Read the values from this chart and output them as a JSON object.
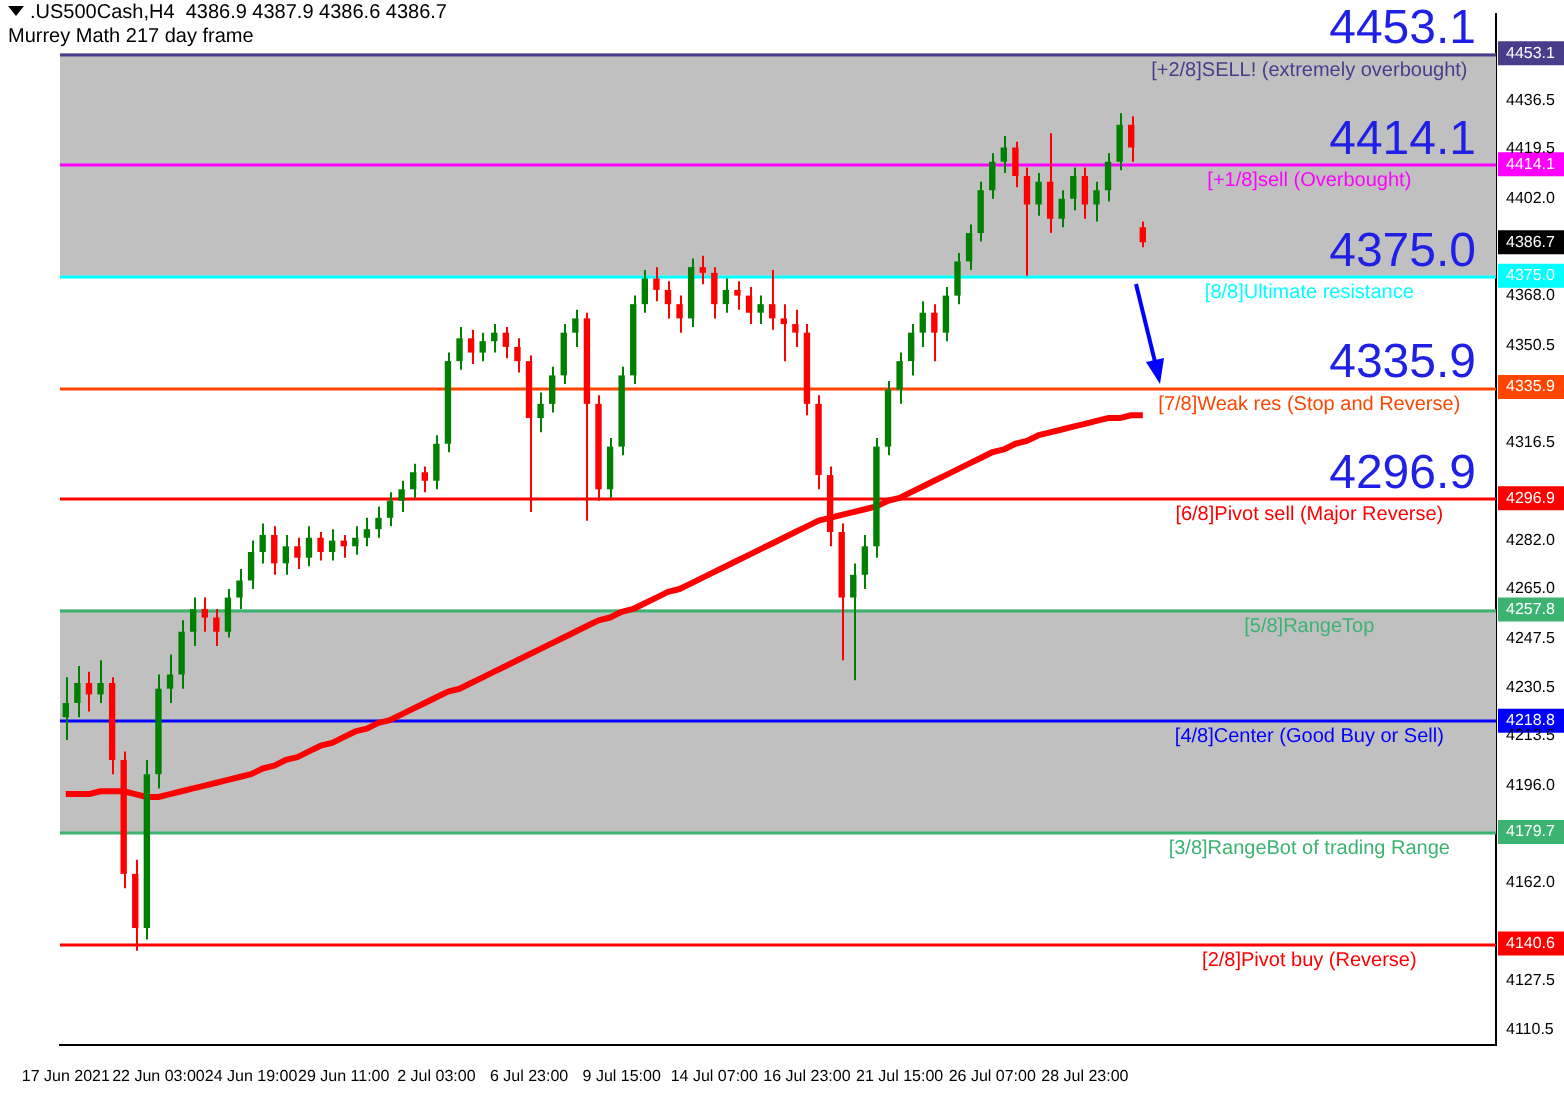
{
  "chart_data": {
    "type": "candlestick",
    "title": ".US500Cash,H4  4386.9 4387.9 4386.6 4386.7",
    "subtitle": "Murrey Math 217 day frame",
    "categories": [
      "17 Jun 2021",
      null,
      null,
      null,
      null,
      null,
      null,
      null,
      "22 Jun 03:00",
      null,
      null,
      null,
      null,
      null,
      null,
      null,
      "24 Jun 19:00",
      null,
      null,
      null,
      null,
      null,
      null,
      null,
      "29 Jun 11:00",
      null,
      null,
      null,
      null,
      null,
      null,
      null,
      "2 Jul 03:00",
      null,
      null,
      null,
      null,
      null,
      null,
      null,
      "6 Jul 23:00",
      null,
      null,
      null,
      null,
      null,
      null,
      null,
      "9 Jul 15:00",
      null,
      null,
      null,
      null,
      null,
      null,
      null,
      "14 Jul 07:00",
      null,
      null,
      null,
      null,
      null,
      null,
      null,
      "16 Jul 23:00",
      null,
      null,
      null,
      null,
      null,
      null,
      null,
      "21 Jul 15:00",
      null,
      null,
      null,
      null,
      null,
      null,
      null,
      "26 Jul 07:00",
      null,
      null,
      null,
      null,
      null,
      null,
      null,
      "28 Jul 23:00",
      null,
      null,
      null,
      null,
      null,
      null,
      null,
      null,
      null,
      null,
      null,
      null,
      null,
      null,
      null,
      null,
      null,
      null,
      null,
      null,
      null,
      null,
      null,
      null,
      null,
      null,
      null,
      null,
      null,
      null,
      null,
      null,
      null,
      null,
      null
    ],
    "ohlc": [
      [
        4220,
        4234,
        4212,
        4225
      ],
      [
        4225,
        4238,
        4220,
        4232
      ],
      [
        4232,
        4236,
        4222,
        4228
      ],
      [
        4228,
        4240,
        4225,
        4232
      ],
      [
        4232,
        4234,
        4200,
        4205
      ],
      [
        4205,
        4208,
        4160,
        4165
      ],
      [
        4165,
        4170,
        4138,
        4146
      ],
      [
        4146,
        4205,
        4142,
        4200
      ],
      [
        4200,
        4235,
        4195,
        4230
      ],
      [
        4230,
        4242,
        4225,
        4235
      ],
      [
        4235,
        4254,
        4230,
        4250
      ],
      [
        4250,
        4262,
        4245,
        4258
      ],
      [
        4258,
        4262,
        4250,
        4255
      ],
      [
        4255,
        4258,
        4245,
        4250
      ],
      [
        4250,
        4265,
        4248,
        4262
      ],
      [
        4262,
        4272,
        4258,
        4268
      ],
      [
        4268,
        4282,
        4265,
        4278
      ],
      [
        4278,
        4288,
        4274,
        4284
      ],
      [
        4284,
        4287,
        4270,
        4274
      ],
      [
        4274,
        4284,
        4270,
        4280
      ],
      [
        4280,
        4283,
        4272,
        4276
      ],
      [
        4276,
        4287,
        4273,
        4283
      ],
      [
        4283,
        4285,
        4275,
        4278
      ],
      [
        4278,
        4286,
        4275,
        4282
      ],
      [
        4282,
        4284,
        4276,
        4280
      ],
      [
        4280,
        4287,
        4277,
        4283
      ],
      [
        4283,
        4290,
        4280,
        4286
      ],
      [
        4286,
        4294,
        4283,
        4290
      ],
      [
        4290,
        4299,
        4287,
        4296
      ],
      [
        4296,
        4303,
        4292,
        4300
      ],
      [
        4300,
        4309,
        4297,
        4306
      ],
      [
        4306,
        4308,
        4299,
        4303
      ],
      [
        4303,
        4319,
        4300,
        4316
      ],
      [
        4316,
        4348,
        4313,
        4345
      ],
      [
        4345,
        4357,
        4342,
        4353
      ],
      [
        4353,
        4356,
        4344,
        4348
      ],
      [
        4348,
        4355,
        4345,
        4352
      ],
      [
        4352,
        4358,
        4348,
        4355
      ],
      [
        4355,
        4357,
        4346,
        4350
      ],
      [
        4350,
        4353,
        4341,
        4345
      ],
      [
        4345,
        4347,
        4292,
        4325
      ],
      [
        4325,
        4334,
        4320,
        4330
      ],
      [
        4330,
        4343,
        4327,
        4340
      ],
      [
        4340,
        4358,
        4337,
        4355
      ],
      [
        4355,
        4363,
        4350,
        4360
      ],
      [
        4360,
        4362,
        4289,
        4330
      ],
      [
        4330,
        4333,
        4296,
        4300
      ],
      [
        4300,
        4318,
        4297,
        4315
      ],
      [
        4315,
        4343,
        4312,
        4340
      ],
      [
        4340,
        4368,
        4337,
        4365
      ],
      [
        4365,
        4377,
        4362,
        4374
      ],
      [
        4374,
        4378,
        4366,
        4370
      ],
      [
        4370,
        4373,
        4360,
        4365
      ],
      [
        4365,
        4368,
        4355,
        4360
      ],
      [
        4360,
        4381,
        4357,
        4378
      ],
      [
        4378,
        4382,
        4372,
        4376
      ],
      [
        4376,
        4378,
        4360,
        4365
      ],
      [
        4365,
        4374,
        4362,
        4370
      ],
      [
        4370,
        4373,
        4363,
        4368
      ],
      [
        4368,
        4371,
        4358,
        4362
      ],
      [
        4362,
        4368,
        4358,
        4365
      ],
      [
        4365,
        4377,
        4356,
        4360
      ],
      [
        4360,
        4365,
        4345,
        4358
      ],
      [
        4358,
        4363,
        4350,
        4355
      ],
      [
        4355,
        4358,
        4326,
        4330
      ],
      [
        4330,
        4333,
        4300,
        4305
      ],
      [
        4305,
        4308,
        4280,
        4285
      ],
      [
        4285,
        4288,
        4240,
        4262
      ],
      [
        4262,
        4274,
        4233,
        4270
      ],
      [
        4270,
        4284,
        4265,
        4280
      ],
      [
        4280,
        4318,
        4276,
        4315
      ],
      [
        4315,
        4338,
        4312,
        4335
      ],
      [
        4335,
        4348,
        4330,
        4345
      ],
      [
        4345,
        4358,
        4340,
        4355
      ],
      [
        4355,
        4366,
        4350,
        4362
      ],
      [
        4362,
        4365,
        4345,
        4355
      ],
      [
        4355,
        4371,
        4352,
        4368
      ],
      [
        4368,
        4383,
        4365,
        4380
      ],
      [
        4380,
        4393,
        4377,
        4390
      ],
      [
        4390,
        4408,
        4387,
        4405
      ],
      [
        4405,
        4418,
        4402,
        4415
      ],
      [
        4415,
        4424,
        4411,
        4420
      ],
      [
        4420,
        4422,
        4406,
        4410
      ],
      [
        4410,
        4413,
        4375,
        4400
      ],
      [
        4400,
        4411,
        4396,
        4408
      ],
      [
        4408,
        4425,
        4390,
        4395
      ],
      [
        4395,
        4405,
        4392,
        4402
      ],
      [
        4402,
        4413,
        4398,
        4410
      ],
      [
        4410,
        4413,
        4395,
        4400
      ],
      [
        4400,
        4408,
        4394,
        4405
      ],
      [
        4405,
        4418,
        4401,
        4415
      ],
      [
        4415,
        4432,
        4412,
        4428
      ],
      [
        4428,
        4431,
        4415,
        4420
      ],
      [
        4392,
        4394,
        4385,
        4386.7
      ],
      null,
      null,
      null,
      null,
      null,
      null,
      null,
      null,
      null,
      null,
      null,
      null,
      null,
      null,
      null,
      null,
      null,
      null,
      null,
      null,
      null,
      null,
      null,
      null,
      null,
      null,
      null,
      null,
      null,
      null
    ],
    "series": [
      {
        "type": "line",
        "color": "#ff0000",
        "values": [
          4193,
          4193,
          4193,
          4194,
          4194,
          4194,
          4193,
          4192,
          4192,
          4193,
          4194,
          4195,
          4196,
          4197,
          4198,
          4199,
          4200,
          4202,
          4203,
          4205,
          4206,
          4208,
          4210,
          4211,
          4213,
          4215,
          4216,
          4218,
          4219,
          4221,
          4223,
          4225,
          4227,
          4229,
          4230,
          4232,
          4234,
          4236,
          4238,
          4240,
          4242,
          4244,
          4246,
          4248,
          4250,
          4252,
          4254,
          4255,
          4257,
          4258,
          4260,
          4262,
          4264,
          4265,
          4267,
          4269,
          4271,
          4273,
          4275,
          4277,
          4279,
          4281,
          4283,
          4285,
          4287,
          4289,
          4290,
          4291,
          4292,
          4293,
          4294,
          4296,
          4297,
          4299,
          4301,
          4303,
          4305,
          4307,
          4309,
          4311,
          4313,
          4314,
          4316,
          4317,
          4319,
          4320,
          4321,
          4322,
          4323,
          4324,
          4325,
          4325,
          4326,
          4326,
          null,
          null,
          null,
          null,
          null,
          null,
          null,
          null,
          null,
          null,
          null,
          null,
          null,
          null,
          null,
          null,
          null,
          null,
          null,
          null,
          null,
          null,
          null,
          null,
          null,
          null,
          null,
          null,
          null,
          null
        ]
      }
    ],
    "ylim": [
      4105,
      4467
    ],
    "yticks": [
      {
        "value": 4110.5,
        "label": "4110.5"
      },
      {
        "value": 4127.5,
        "label": "4127.5"
      },
      {
        "value": 4162,
        "label": "4162.0"
      },
      {
        "value": 4196,
        "label": "4196.0"
      },
      {
        "value": 4213.5,
        "label": "4213.5"
      },
      {
        "value": 4230.5,
        "label": "4230.5"
      },
      {
        "value": 4247.5,
        "label": "4247.5"
      },
      {
        "value": 4265,
        "label": "4265.0"
      },
      {
        "value": 4282,
        "label": "4282.0"
      },
      {
        "value": 4316.5,
        "label": "4316.5"
      },
      {
        "value": 4350.5,
        "label": "4350.5"
      },
      {
        "value": 4368,
        "label": "4368.0"
      },
      {
        "value": 4402,
        "label": "4402.0"
      },
      {
        "value": 4419.5,
        "label": "4419.5"
      },
      {
        "value": 4436.5,
        "label": "4436.5"
      },
      {
        "value": 4453.1,
        "label": "4453.1"
      },
      {
        "value": 4414.1,
        "label": "4414.1"
      },
      {
        "value": 4386.7,
        "label": "4386.7"
      },
      {
        "value": 4375,
        "label": "4375.0"
      },
      {
        "value": 4335.9,
        "label": "4335.9"
      },
      {
        "value": 4296.9,
        "label": "4296.9"
      },
      {
        "value": 4257.8,
        "label": "4257.8"
      },
      {
        "value": 4218.8,
        "label": "4218.8"
      },
      {
        "value": 4179.7,
        "label": "4179.7"
      },
      {
        "value": 4140.6,
        "label": "4140.6"
      }
    ],
    "bands": [
      {
        "axis": "y",
        "from": 4375,
        "to": 4453.1,
        "color": "#c0c0c0"
      },
      {
        "axis": "y",
        "from": 4179.7,
        "to": 4257.8,
        "color": "#c0c0c0"
      }
    ],
    "ref_lines": [
      {
        "axis": "y",
        "value": 4453.1,
        "label": "[+2/8]SELL! (extremely overbought)",
        "color": "#483d8b"
      },
      {
        "axis": "y",
        "value": 4414.1,
        "label": "[+1/8]sell (Overbought)",
        "color": "#ff00ff"
      },
      {
        "axis": "y",
        "value": 4375,
        "label": "[8/8]Ultimate resistance",
        "color": "#00ffff"
      },
      {
        "axis": "y",
        "value": 4335.9,
        "label": "[7/8]Weak res (Stop and Reverse)",
        "color": "#ff4500"
      },
      {
        "axis": "y",
        "value": 4296.9,
        "label": "[6/8]Pivot sell (Major Reverse)",
        "color": "#ff0000"
      },
      {
        "axis": "y",
        "value": 4257.8,
        "label": "[5/8]RangeTop",
        "color": "#3cb371"
      },
      {
        "axis": "y",
        "value": 4218.8,
        "label": "[4/8]Center (Good Buy or Sell)",
        "color": "#0000ff"
      },
      {
        "axis": "y",
        "value": 4179.7,
        "label": "[3/8]RangeBot of trading Range",
        "color": "#3cb371"
      },
      {
        "axis": "y",
        "value": 4140.6,
        "label": "[2/8]Pivot buy (Reverse)",
        "color": "#ff0000"
      }
    ],
    "annotations": [
      {
        "text": "4453.1",
        "y": 4453.1
      },
      {
        "text": "4414.1",
        "y": 4414.1
      },
      {
        "text": "4375.0",
        "y": 4375
      },
      {
        "text": "4335.9",
        "y": 4335.9
      },
      {
        "text": "4296.9",
        "y": 4296.9
      }
    ],
    "legend": false,
    "grid": false
  }
}
